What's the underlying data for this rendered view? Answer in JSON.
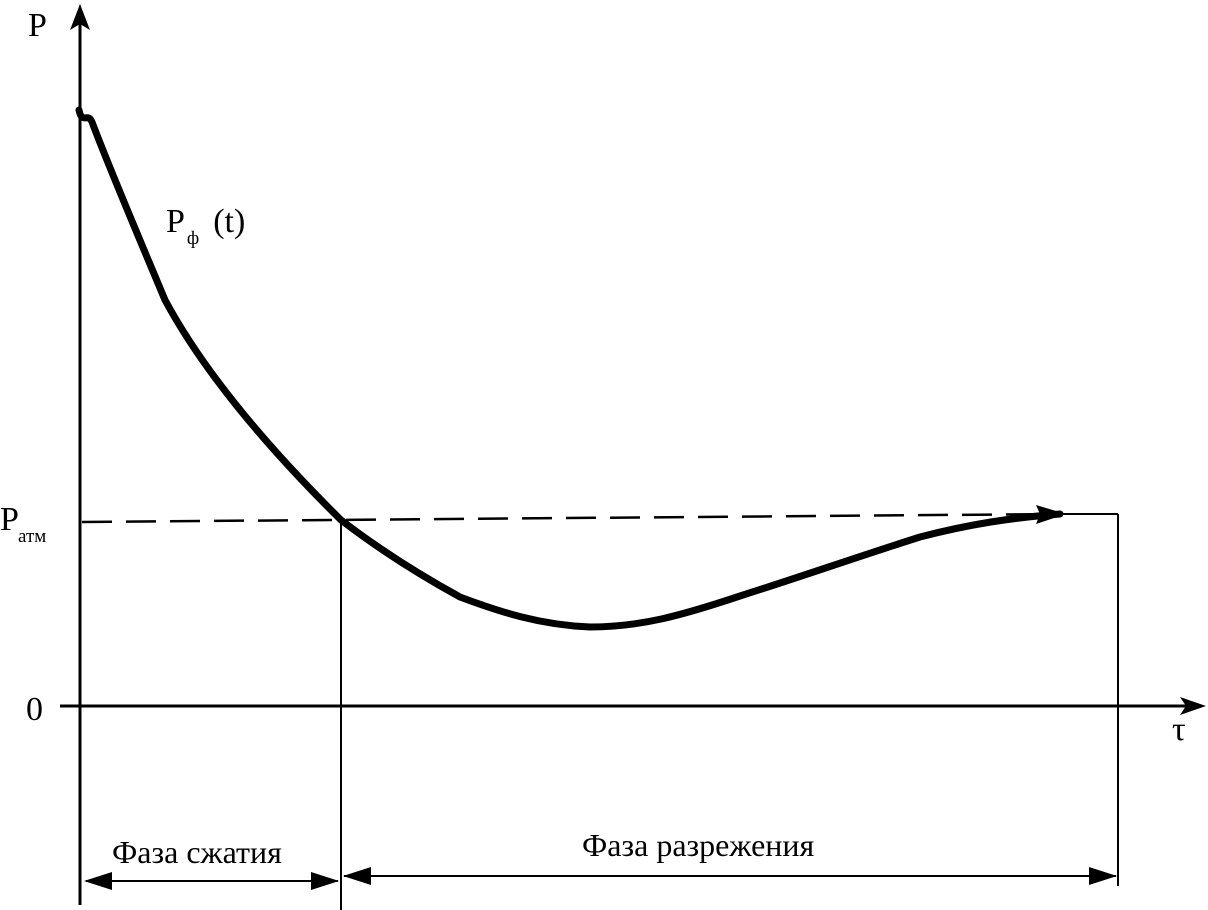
{
  "y_axis_label": "P",
  "x_axis_label": "τ",
  "origin_label": "0",
  "curve_label": {
    "main": "P",
    "sub": "ф",
    "arg": "(t)"
  },
  "atm_label": {
    "main": "P",
    "sub": "атм"
  },
  "phases": {
    "compression": "Фаза сжатия",
    "rarefaction": "Фаза разрежения"
  }
}
